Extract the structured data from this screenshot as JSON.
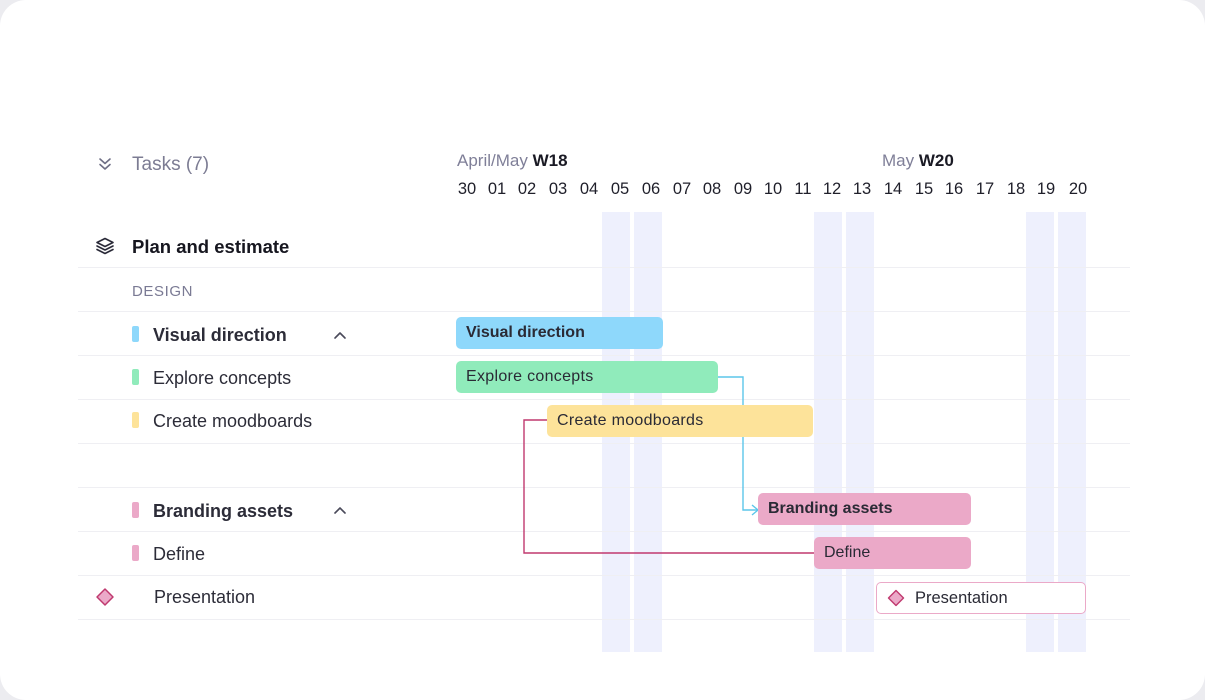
{
  "header": {
    "tasks_label": "Tasks (7)",
    "week1_month": "April/May",
    "week1_label": "W18",
    "week2_month": "May",
    "week2_label": "W20",
    "days": [
      "30",
      "01",
      "02",
      "03",
      "04",
      "05",
      "06",
      "07",
      "08",
      "09",
      "10",
      "11",
      "12",
      "13",
      "14",
      "15",
      "16",
      "17",
      "18",
      "19",
      "20"
    ]
  },
  "rows": {
    "group_title": "Plan and estimate",
    "section_label": "DESIGN",
    "visual_direction": "Visual direction",
    "explore_concepts": "Explore concepts",
    "create_moodboards": "Create moodboards",
    "branding_assets": "Branding assets",
    "define": "Define",
    "presentation": "Presentation"
  },
  "bars": {
    "visual_direction": "Visual direction",
    "explore_concepts": "Explore concepts",
    "create_moodboards": "Create moodboards",
    "branding_assets": "Branding assets",
    "define": "Define",
    "presentation": "Presentation"
  },
  "colors": {
    "blue": "#8ed8fb",
    "green": "#90ebbb",
    "yellow": "#fde39a",
    "pink": "#eba9c8",
    "weekend": "#eef0fd",
    "link_blue": "#5cc6ea",
    "link_pink": "#c0396f"
  },
  "icons": {
    "collapse": "double-chevron-down-icon",
    "group": "layers-icon",
    "expand": "chevron-up-icon",
    "milestone": "diamond-icon"
  }
}
